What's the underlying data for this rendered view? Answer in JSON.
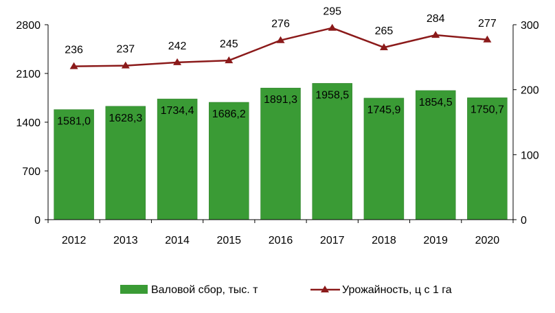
{
  "chart_data": {
    "type": "bar+line",
    "categories": [
      "2012",
      "2013",
      "2014",
      "2015",
      "2016",
      "2017",
      "2018",
      "2019",
      "2020"
    ],
    "series": [
      {
        "name": "Валовой сбор, тыс. т",
        "type": "bar",
        "axis": "left",
        "values": [
          1581.0,
          1628.3,
          1734.4,
          1686.2,
          1891.3,
          1958.5,
          1745.9,
          1854.5,
          1750.7
        ],
        "labels": [
          "1581,0",
          "1628,3",
          "1734,4",
          "1686,2",
          "1891,3",
          "1958,5",
          "1745,9",
          "1854,5",
          "1750,7"
        ],
        "color": "#3a9b35"
      },
      {
        "name": "Урожайность, ц с 1 га",
        "type": "line",
        "axis": "right",
        "values": [
          236,
          237,
          242,
          245,
          276,
          295,
          265,
          284,
          277
        ],
        "labels": [
          "236",
          "237",
          "242",
          "245",
          "276",
          "295",
          "265",
          "284",
          "277"
        ],
        "color": "#8b1a1a",
        "marker": "triangle"
      }
    ],
    "y_left": {
      "ylim": [
        0,
        2800
      ],
      "ticks": [
        "0",
        "700",
        "1400",
        "2100",
        "2800"
      ]
    },
    "y_right": {
      "ylim": [
        0,
        300
      ],
      "ticks": [
        "0",
        "100",
        "200",
        "300"
      ]
    },
    "legend_placement": "bottom",
    "grid": false
  }
}
